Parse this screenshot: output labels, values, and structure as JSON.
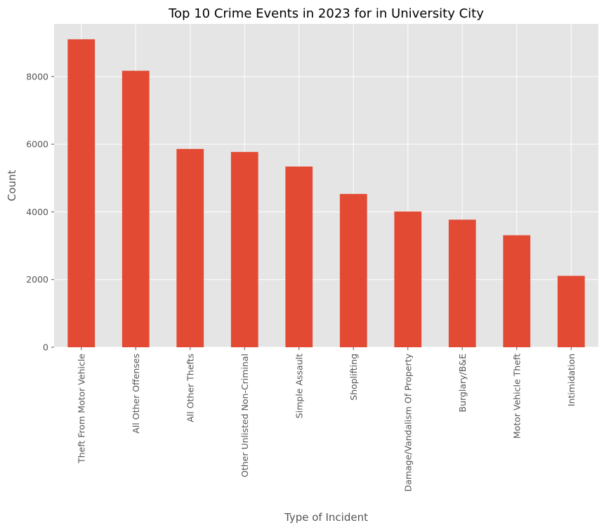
{
  "chart_data": {
    "type": "bar",
    "title": "Top 10 Crime Events in 2023 for in University City",
    "xlabel": "Type of Incident",
    "ylabel": "Count",
    "categories": [
      "Theft From Motor Vehicle",
      "All Other Offenses",
      "All Other Thefts",
      "Other Unlisted Non-Criminal",
      "Simple Assault",
      "Shoplifting",
      "Damage/Vandalism Of Property",
      "Burglary/B&E",
      "Motor Vehicle Theft",
      "Intimidation"
    ],
    "values": [
      9100,
      8170,
      5860,
      5770,
      5340,
      4530,
      4010,
      3770,
      3310,
      2110
    ],
    "ylim": [
      0,
      9555
    ],
    "yticks": [
      0,
      2000,
      4000,
      6000,
      8000
    ],
    "ytick_labels": [
      "0",
      "2000",
      "4000",
      "6000",
      "8000"
    ],
    "grid": true,
    "style": "ggplot",
    "colors": {
      "bar": "#E24A33",
      "plot_background": "#E5E5E5",
      "grid": "#FFFFFF",
      "text": "#555555"
    }
  }
}
